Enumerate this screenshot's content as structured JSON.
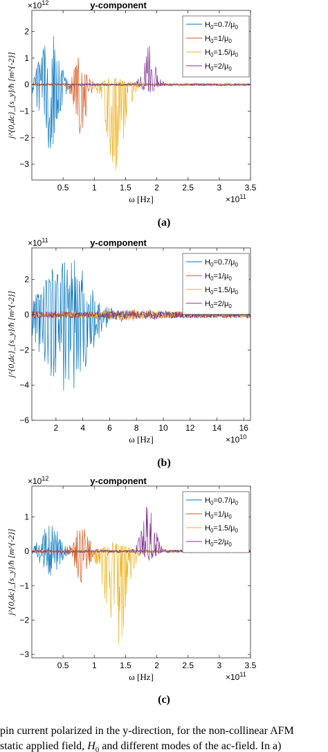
{
  "chart_data": [
    {
      "type": "line",
      "title": "y-component",
      "xlabel": "ω [Hz]",
      "ylabel": "j^{0,dc}_{s_y}/ħ [m^{-2}]",
      "x_exponent": "×10^11",
      "y_exponent": "×10^12",
      "xlim": [
        0,
        3.5
      ],
      "ylim": [
        -3.6,
        2.8
      ],
      "xticks": [
        "0.5",
        "1",
        "1.5",
        "2",
        "2.5",
        "3",
        "3.5"
      ],
      "yticks": [
        "-3",
        "-2",
        "-1",
        "0",
        "1",
        "2"
      ],
      "legend_position": "top-right",
      "panel_label": "(a)",
      "series": [
        {
          "name": "H0=0.7/μ0",
          "color": "#0072BD",
          "center": 0.28,
          "width": 0.19,
          "peak": 2.2,
          "trough": -2.6
        },
        {
          "name": "H0=1/μ0",
          "color": "#D95319",
          "center": 0.78,
          "width": 0.13,
          "peak": 1.2,
          "trough": -1.9
        },
        {
          "name": "H0=1.5/μ0",
          "color": "#EDB120",
          "center": 1.35,
          "width": 0.2,
          "peak": 0.3,
          "trough": -3.4
        },
        {
          "name": "H0=2/μ0",
          "color": "#7E2F8E",
          "center": 1.88,
          "width": 0.14,
          "peak": 1.5,
          "trough": -0.3
        }
      ]
    },
    {
      "type": "line",
      "title": "y-component",
      "xlabel": "ω [Hz]",
      "ylabel": "j^{0,dc}_{s_y}/ħ [m^{-2}]",
      "x_exponent": "×10^10",
      "y_exponent": "×10^11",
      "xlim": [
        0.2,
        16.5
      ],
      "ylim": [
        -6,
        3.8
      ],
      "xticks": [
        "2",
        "4",
        "6",
        "8",
        "10",
        "12",
        "14",
        "16"
      ],
      "yticks": [
        "-6",
        "-4",
        "-2",
        "0",
        "2"
      ],
      "legend_position": "top-right",
      "panel_label": "(b)",
      "series": [
        {
          "name": "H0=0.7/μ0",
          "color": "#0072BD",
          "center": 2.7,
          "width": 2.2,
          "peak": 3.4,
          "trough": -4.7
        },
        {
          "name": "H0=1/μ0",
          "color": "#D95319",
          "center": 6.8,
          "width": 1.8,
          "peak": 0.3,
          "trough": -0.3
        },
        {
          "name": "H0=1.5/μ0",
          "color": "#EDB120",
          "center": 7.5,
          "width": 2.0,
          "peak": 0.15,
          "trough": -0.15
        },
        {
          "name": "H0=2/μ0",
          "color": "#7E2F8E",
          "center": 8.5,
          "width": 2.0,
          "peak": 0.1,
          "trough": -0.1
        }
      ]
    },
    {
      "type": "line",
      "title": "y-component",
      "xlabel": "ω [Hz]",
      "ylabel": "j^{0,dc}_{s_y}/ħ [m^{-2}]",
      "x_exponent": "×10^11",
      "y_exponent": "×10^12",
      "xlim": [
        0,
        3.5
      ],
      "ylim": [
        -3.1,
        1.9
      ],
      "xticks": [
        "0.5",
        "1",
        "1.5",
        "2",
        "2.5",
        "3",
        "3.5"
      ],
      "yticks": [
        "-3",
        "-2",
        "-1",
        "0",
        "1"
      ],
      "legend_position": "top-right",
      "panel_label": "(c)",
      "series": [
        {
          "name": "H0=0.7/μ0",
          "color": "#0072BD",
          "center": 0.3,
          "width": 0.2,
          "peak": 0.8,
          "trough": -0.7
        },
        {
          "name": "H0=1/μ0",
          "color": "#D95319",
          "center": 0.8,
          "width": 0.14,
          "peak": 0.9,
          "trough": -1.0
        },
        {
          "name": "H0=1.5/μ0",
          "color": "#EDB120",
          "center": 1.35,
          "width": 0.22,
          "peak": 0.3,
          "trough": -2.95
        },
        {
          "name": "H0=2/μ0",
          "color": "#7E2F8E",
          "center": 1.87,
          "width": 0.14,
          "peak": 1.5,
          "trough": -0.3
        }
      ]
    }
  ],
  "caption": {
    "line1": "pin current polarized in the y-direction, for the non-collinear AFM",
    "line2": "static applied field, H0 and different modes of the ac-field. In a)"
  }
}
